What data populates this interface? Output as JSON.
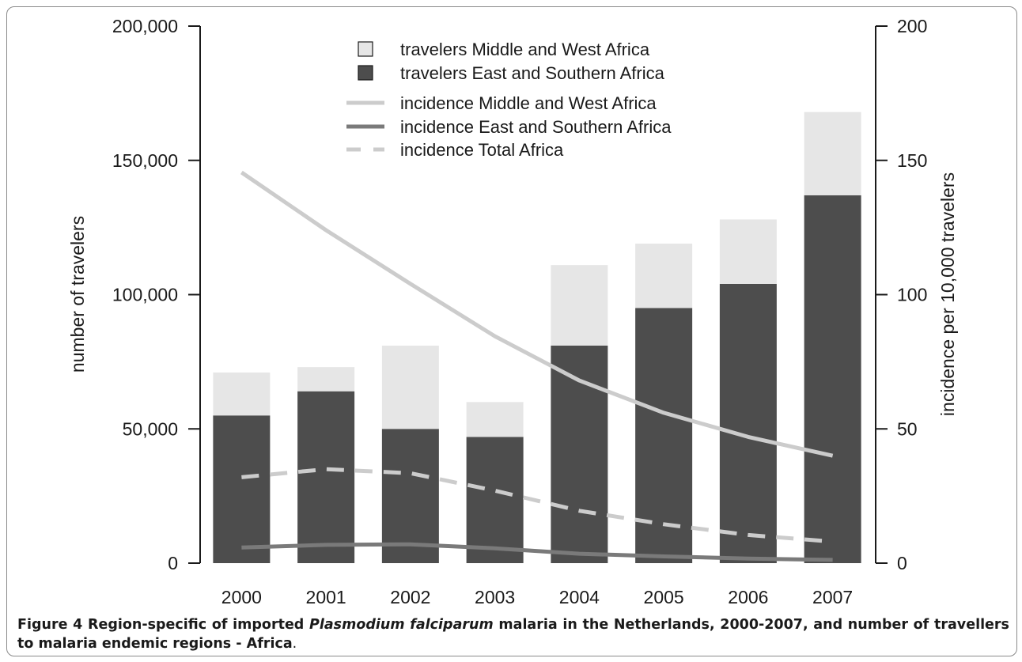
{
  "chart_data": {
    "type": "bar",
    "categories": [
      "2000",
      "2001",
      "2002",
      "2003",
      "2004",
      "2005",
      "2006",
      "2007"
    ],
    "series": [
      {
        "name": "travelers East and Southern Africa",
        "kind": "bar",
        "axis": "left",
        "color": "#4d4d4d",
        "values": [
          55000,
          64000,
          50000,
          47000,
          81000,
          95000,
          104000,
          137000
        ]
      },
      {
        "name": "travelers Middle and West Africa",
        "kind": "bar",
        "axis": "left",
        "color": "#e6e6e6",
        "values": [
          16000,
          9000,
          31000,
          13000,
          30000,
          24000,
          24000,
          31000
        ]
      },
      {
        "name": "incidence Middle and West Africa",
        "kind": "line",
        "axis": "right",
        "color": "#cccccc",
        "dash": "solid",
        "values": [
          145.5,
          124,
          104,
          84.5,
          68,
          56,
          47,
          40
        ]
      },
      {
        "name": "incidence East and Southern Africa",
        "kind": "line",
        "axis": "right",
        "color": "#7a7a7a",
        "dash": "solid",
        "values": [
          5.8,
          6.8,
          7,
          5.5,
          3.5,
          2.5,
          1.7,
          1.2
        ]
      },
      {
        "name": "incidence Total Africa",
        "kind": "line",
        "axis": "right",
        "color": "#cccccc",
        "dash": "dashed",
        "values": [
          32,
          35,
          33.5,
          27,
          19.5,
          14.5,
          10.5,
          8
        ]
      }
    ],
    "ylabel": "number of travelers",
    "y2label": "incidence per 10,000 travelers",
    "ylim": [
      0,
      200000
    ],
    "y2lim": [
      0,
      200
    ],
    "yticks": [
      "0",
      "50,000",
      "100,000",
      "150,000",
      "200,000"
    ],
    "y2ticks": [
      "0",
      "50",
      "100",
      "150",
      "200"
    ],
    "ytick_values": [
      0,
      50000,
      100000,
      150000,
      200000
    ],
    "y2tick_values": [
      0,
      50,
      100,
      150,
      200
    ],
    "stacked": true,
    "grid": false,
    "legend_position": "top-center"
  },
  "caption": {
    "label": "Figure 4",
    "text_before": " Region-specific of imported ",
    "italic": "Plasmodium falciparum",
    "text_after": " malaria in the Netherlands, 2000-2007, and number of travellers to malaria endemic regions - Africa",
    "end": "."
  }
}
